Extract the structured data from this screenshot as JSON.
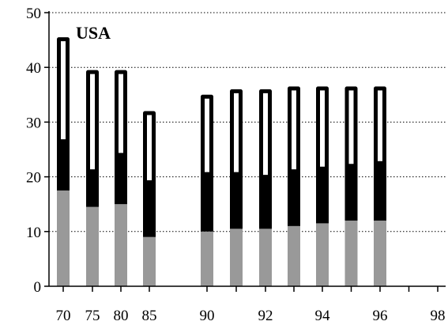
{
  "chart_data": {
    "type": "bar",
    "stacked": true,
    "title": "USA",
    "xlabel": "",
    "ylabel": "",
    "ylim": [
      0,
      50
    ],
    "y_ticks": [
      0,
      10,
      20,
      30,
      40,
      50
    ],
    "x_ticks": [
      "70",
      "75",
      "80",
      "85",
      "90",
      "92",
      "94",
      "96",
      "98"
    ],
    "grid": "horizontal dotted",
    "bars": [
      {
        "x": 1970,
        "gray": 17.5,
        "black": 9.0,
        "white": 19.0
      },
      {
        "x": 1975,
        "gray": 14.5,
        "black": 6.5,
        "white": 18.5
      },
      {
        "x": 1980,
        "gray": 15.0,
        "black": 9.0,
        "white": 15.5
      },
      {
        "x": 1985,
        "gray": 9.0,
        "black": 10.0,
        "white": 13.0
      },
      {
        "x": 1990,
        "gray": 10.0,
        "black": 10.5,
        "white": 14.5
      },
      {
        "x": 1991,
        "gray": 10.5,
        "black": 10.0,
        "white": 15.5
      },
      {
        "x": 1992,
        "gray": 10.5,
        "black": 9.5,
        "white": 16.0
      },
      {
        "x": 1993,
        "gray": 11.0,
        "black": 10.0,
        "white": 15.5
      },
      {
        "x": 1994,
        "gray": 11.5,
        "black": 10.0,
        "white": 15.0
      },
      {
        "x": 1995,
        "gray": 12.0,
        "black": 10.0,
        "white": 14.5
      },
      {
        "x": 1996,
        "gray": 12.0,
        "black": 10.5,
        "white": 14.0
      }
    ],
    "colors": {
      "gray": "#999999",
      "black": "#000000",
      "white": "#ffffff",
      "grid": "#000000"
    }
  }
}
